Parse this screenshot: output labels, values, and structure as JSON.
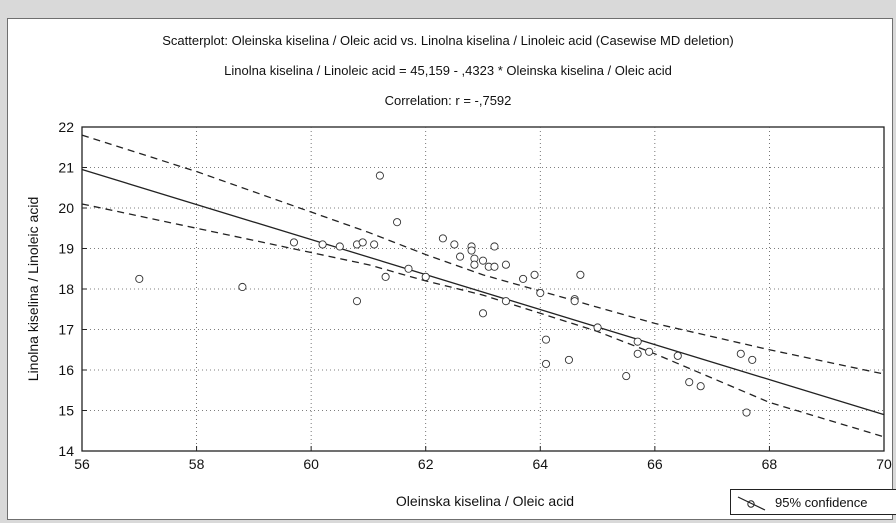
{
  "chart_data": {
    "type": "scatter",
    "title": "Scatterplot: Oleinska kiselina / Oleic acid vs. Linolna kiselina / Linoleic acid (Casewise MD deletion)",
    "equation": "Linolna kiselina / Linoleic acid = 45,159 - ,4323  * Oleinska kiselina / Oleic acid",
    "correlation": "Correlation: r = -,7592",
    "xlabel": "Oleinska kiselina / Oleic acid",
    "ylabel": "Linolna kiselina / Linoleic acid",
    "xlim": [
      56,
      70
    ],
    "ylim": [
      14,
      22
    ],
    "xticks": [
      "56",
      "58",
      "60",
      "62",
      "64",
      "66",
      "68",
      "70"
    ],
    "yticks": [
      "14",
      "15",
      "16",
      "17",
      "18",
      "19",
      "20",
      "21",
      "22"
    ],
    "grid": true,
    "regression": {
      "intercept": 45.159,
      "slope": -0.4323
    },
    "confidence_band": [
      {
        "x": 56,
        "lower": 20.1,
        "upper": 21.8
      },
      {
        "x": 58,
        "lower": 19.5,
        "upper": 20.9
      },
      {
        "x": 60,
        "lower": 18.9,
        "upper": 19.9
      },
      {
        "x": 61,
        "lower": 18.6,
        "upper": 19.4
      },
      {
        "x": 62,
        "lower": 18.2,
        "upper": 18.85
      },
      {
        "x": 63,
        "lower": 17.85,
        "upper": 18.35
      },
      {
        "x": 64,
        "lower": 17.4,
        "upper": 17.95
      },
      {
        "x": 65,
        "lower": 16.95,
        "upper": 17.55
      },
      {
        "x": 66,
        "lower": 16.4,
        "upper": 17.15
      },
      {
        "x": 68,
        "lower": 15.2,
        "upper": 16.5
      },
      {
        "x": 70,
        "lower": 14.35,
        "upper": 15.9
      }
    ],
    "points": [
      {
        "x": 57.0,
        "y": 18.25
      },
      {
        "x": 58.8,
        "y": 18.05
      },
      {
        "x": 59.7,
        "y": 19.15
      },
      {
        "x": 60.2,
        "y": 19.1
      },
      {
        "x": 60.5,
        "y": 19.05
      },
      {
        "x": 60.8,
        "y": 19.1
      },
      {
        "x": 60.9,
        "y": 19.15
      },
      {
        "x": 61.1,
        "y": 19.1
      },
      {
        "x": 60.8,
        "y": 17.7
      },
      {
        "x": 61.2,
        "y": 20.8
      },
      {
        "x": 61.3,
        "y": 18.3
      },
      {
        "x": 61.5,
        "y": 19.65
      },
      {
        "x": 61.7,
        "y": 18.5
      },
      {
        "x": 62.0,
        "y": 18.3
      },
      {
        "x": 62.3,
        "y": 19.25
      },
      {
        "x": 62.5,
        "y": 19.1
      },
      {
        "x": 62.6,
        "y": 18.8
      },
      {
        "x": 62.8,
        "y": 19.05
      },
      {
        "x": 62.8,
        "y": 18.95
      },
      {
        "x": 62.85,
        "y": 18.75
      },
      {
        "x": 62.85,
        "y": 18.6
      },
      {
        "x": 63.0,
        "y": 18.7
      },
      {
        "x": 63.1,
        "y": 18.55
      },
      {
        "x": 63.2,
        "y": 19.05
      },
      {
        "x": 63.2,
        "y": 18.55
      },
      {
        "x": 63.4,
        "y": 18.6
      },
      {
        "x": 63.0,
        "y": 17.4
      },
      {
        "x": 63.4,
        "y": 17.7
      },
      {
        "x": 63.7,
        "y": 18.25
      },
      {
        "x": 63.9,
        "y": 18.35
      },
      {
        "x": 64.0,
        "y": 17.9
      },
      {
        "x": 64.1,
        "y": 16.75
      },
      {
        "x": 64.1,
        "y": 16.15
      },
      {
        "x": 64.5,
        "y": 16.25
      },
      {
        "x": 64.6,
        "y": 17.75
      },
      {
        "x": 64.6,
        "y": 17.7
      },
      {
        "x": 64.7,
        "y": 18.35
      },
      {
        "x": 65.0,
        "y": 17.05
      },
      {
        "x": 65.5,
        "y": 15.85
      },
      {
        "x": 65.7,
        "y": 16.7
      },
      {
        "x": 65.7,
        "y": 16.4
      },
      {
        "x": 65.9,
        "y": 16.45
      },
      {
        "x": 66.4,
        "y": 16.35
      },
      {
        "x": 66.6,
        "y": 15.7
      },
      {
        "x": 66.8,
        "y": 15.6
      },
      {
        "x": 67.5,
        "y": 16.4
      },
      {
        "x": 67.6,
        "y": 14.95
      },
      {
        "x": 67.7,
        "y": 16.25
      }
    ],
    "legend": "95% confidence"
  }
}
